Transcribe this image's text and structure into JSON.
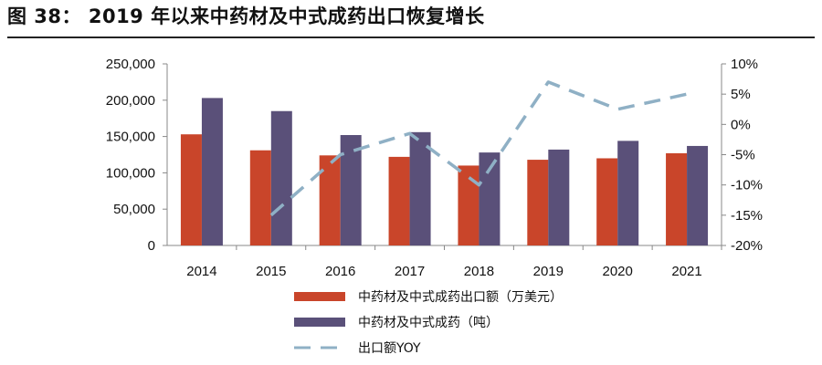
{
  "figure": {
    "title": "图 38：   2019 年以来中药材及中式成药出口恢复增长"
  },
  "chart_data": {
    "type": "bar",
    "categories": [
      "2014",
      "2015",
      "2016",
      "2017",
      "2018",
      "2019",
      "2020",
      "2021"
    ],
    "series": [
      {
        "name": "中药材及中式成药出口额（万美元）",
        "kind": "bar",
        "axis": "left",
        "color": "#C9452A",
        "values": [
          153000,
          131000,
          124000,
          122000,
          110000,
          118000,
          120000,
          127000
        ]
      },
      {
        "name": "中药材及中式成药（吨）",
        "kind": "bar",
        "axis": "left",
        "color": "#5A5079",
        "values": [
          203000,
          185000,
          152000,
          156000,
          128000,
          132000,
          144000,
          137000
        ]
      },
      {
        "name": "出口额YOY",
        "kind": "line",
        "axis": "right",
        "color": "#8FB0C5",
        "dashed": true,
        "values": [
          null,
          -15,
          -5,
          -1.5,
          -10,
          7,
          2.5,
          5
        ]
      }
    ],
    "y_left": {
      "min": 0,
      "max": 250000,
      "ticks": [
        0,
        50000,
        100000,
        150000,
        200000,
        250000
      ],
      "tick_labels": [
        "0",
        "50,000",
        "100,000",
        "150,000",
        "200,000",
        "250,000"
      ]
    },
    "y_right": {
      "min": -20,
      "max": 10,
      "ticks": [
        -20,
        -15,
        -10,
        -5,
        0,
        5,
        10
      ],
      "tick_labels": [
        "-20%",
        "-15%",
        "-10%",
        "-5%",
        "0%",
        "5%",
        "10%"
      ]
    },
    "grid": false,
    "legend_position": "bottom"
  }
}
